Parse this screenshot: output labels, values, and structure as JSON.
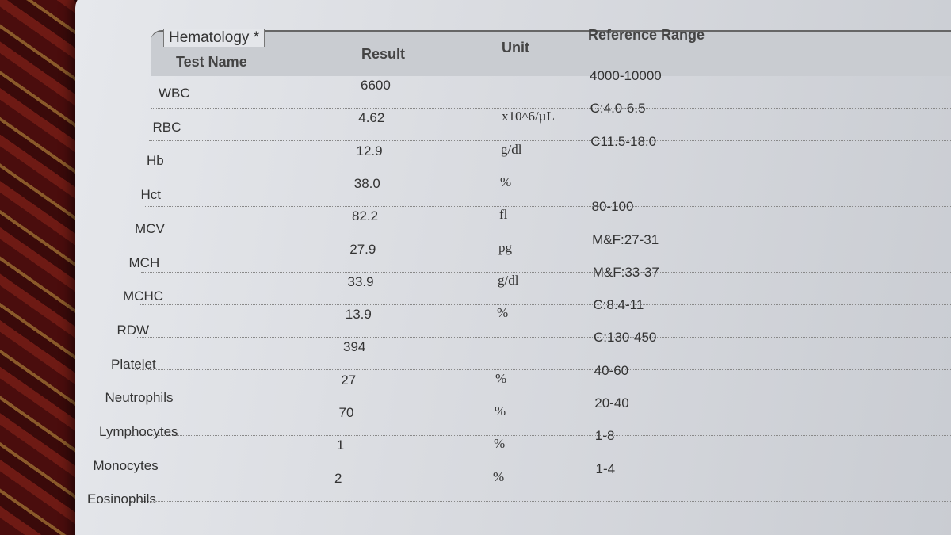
{
  "section": {
    "title": "Hematology *"
  },
  "table": {
    "headers": [
      "Test Name",
      "Result",
      "Unit",
      "Reference Range"
    ],
    "rows": [
      [
        "WBC",
        "6600",
        null,
        "4000-10000"
      ],
      [
        "RBC",
        "4.62",
        "x10^6/µL",
        "C:4.0-6.5"
      ],
      [
        "Hb",
        "12.9",
        "g/dl",
        "C11.5-18.0"
      ],
      [
        "Hct",
        "38.0",
        "%",
        null
      ],
      [
        "MCV",
        "82.2",
        "fl",
        "80-100"
      ],
      [
        "MCH",
        "27.9",
        "pg",
        "M&F:27-31"
      ],
      [
        "MCHC",
        "33.9",
        "g/dl",
        "M&F:33-37"
      ],
      [
        "RDW",
        "13.9",
        "%",
        "C:8.4-11"
      ],
      [
        "Platelet",
        "394",
        null,
        "C:130-450"
      ],
      [
        "Neutrophils",
        "27",
        "%",
        "40-60"
      ],
      [
        "Lymphocytes",
        "70",
        "%",
        "20-40"
      ],
      [
        "Monocytes",
        "1",
        "%",
        "1-8"
      ],
      [
        "Eosinophils",
        "2",
        "%",
        "1-4"
      ]
    ]
  }
}
